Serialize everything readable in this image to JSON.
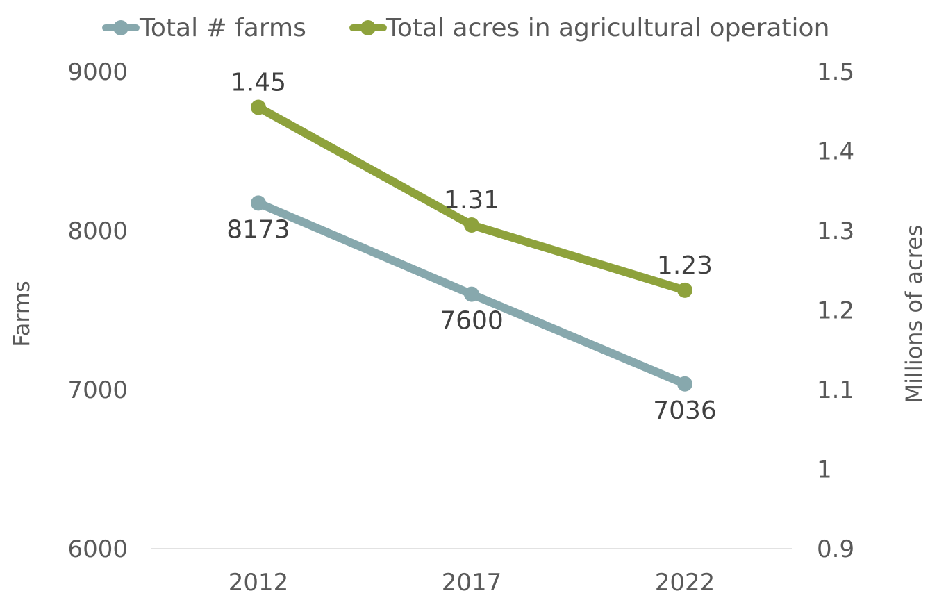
{
  "chart_data": {
    "type": "line",
    "categories": [
      "2012",
      "2017",
      "2022"
    ],
    "series": [
      {
        "name": "Total # farms",
        "axis": "left",
        "values": [
          8173,
          7600,
          7036
        ],
        "labels": [
          "8173",
          "7600",
          "7036"
        ],
        "color": "#87A8AD"
      },
      {
        "name": "Total acres in agricultural operation",
        "axis": "right",
        "values": [
          1.455,
          1.307,
          1.225
        ],
        "labels": [
          "1.45",
          "1.31",
          "1.23"
        ],
        "color": "#8EA23C"
      }
    ],
    "ylabel": "Farms",
    "y2label": "Millions of acres",
    "ylim": [
      6000,
      9000
    ],
    "y_ticks": [
      "6000",
      "7000",
      "8000",
      "9000"
    ],
    "y2lim": [
      0.9,
      1.5
    ],
    "y2_ticks": [
      "0.9",
      "1",
      "1.1",
      "1.2",
      "1.3",
      "1.4",
      "1.5"
    ],
    "legend_position": "top",
    "grid": false,
    "axis_color": "#D9D9D9",
    "text_color": "#595959",
    "label_color": "#404040"
  }
}
